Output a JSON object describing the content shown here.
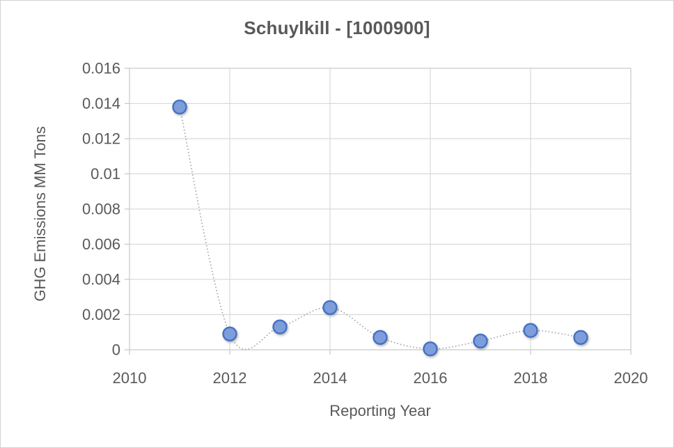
{
  "title": "Schuylkill - [1000900]",
  "chart_data": {
    "type": "scatter",
    "title": "Schuylkill - [1000900]",
    "xlabel": "Reporting Year",
    "ylabel": "GHG Emissions MM Tons",
    "x": [
      2011,
      2012,
      2013,
      2014,
      2015,
      2016,
      2017,
      2018,
      2019
    ],
    "y": [
      0.0138,
      0.0009,
      0.0013,
      0.0024,
      0.0007,
      5e-05,
      0.0005,
      0.0011,
      0.0007
    ],
    "xlim": [
      2010,
      2020
    ],
    "ylim": [
      0,
      0.016
    ],
    "x_ticks": [
      2010,
      2012,
      2014,
      2016,
      2018,
      2020
    ],
    "x_tick_labels": [
      "2010",
      "2012",
      "2014",
      "2016",
      "2018",
      "2020"
    ],
    "y_ticks": [
      0,
      0.002,
      0.004,
      0.006,
      0.008,
      0.01,
      0.012,
      0.014,
      0.016
    ],
    "y_tick_labels": [
      "0",
      "0.002",
      "0.004",
      "0.006",
      "0.008",
      "0.01",
      "0.012",
      "0.014",
      "0.016"
    ],
    "grid": true,
    "legend": "none",
    "line_style": "dotted-smooth",
    "marker": "circle",
    "colors": {
      "marker_fill": "#7d9ddb",
      "marker_stroke": "#4571c4",
      "line": "#9c9c9c",
      "grid": "#d9d9d9",
      "axis_border": "#d0d0d0",
      "tick": "#c6c6c6",
      "text": "#595959"
    }
  }
}
